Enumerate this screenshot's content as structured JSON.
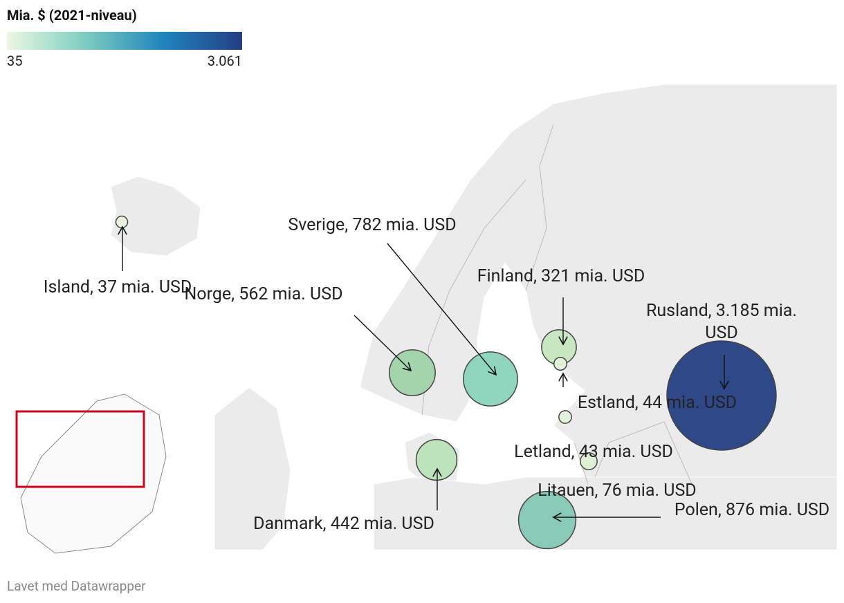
{
  "legend": {
    "title": "Mia. $ (2021-niveau)",
    "min": 35,
    "max": {
      "value": 3061,
      "label": "3.061"
    },
    "colors": [
      "#edf8e2",
      "#7ccdc0",
      "#1f84bd",
      "#243f83"
    ]
  },
  "bubbles": [
    {
      "label": "Island, 37 mia. USD",
      "value": 37,
      "color": "#e6f4dc"
    },
    {
      "label": "Norge, 562  mia. USD",
      "value": 562,
      "color": "#9fd3a8"
    },
    {
      "label": "Sverige, 782 mia. USD",
      "value": 782,
      "color": "#8ad4bc"
    },
    {
      "label": "Finland, 321 mia. USD",
      "value": 321,
      "color": "#c6e8c0"
    },
    {
      "label": "Rusland, 3.185 mia. USD",
      "value": 3185,
      "color": "#243f83"
    },
    {
      "label": "Estland, 44 mia. USD",
      "value": 44,
      "color": "#e4f3da"
    },
    {
      "label": "Letland, 43 mia. USD",
      "value": 43,
      "color": "#e4f3da"
    },
    {
      "label": "Litauen,  76 mia. USD",
      "value": 76,
      "color": "#dcf0d2"
    },
    {
      "label": "Polen, 876 mia. USD",
      "value": 876,
      "color": "#84c8b4"
    },
    {
      "label": "Danmark, 442 mia. USD",
      "value": 442,
      "color": "#b9e3b7"
    }
  ],
  "footer": "Lavet med Datawrapper"
}
